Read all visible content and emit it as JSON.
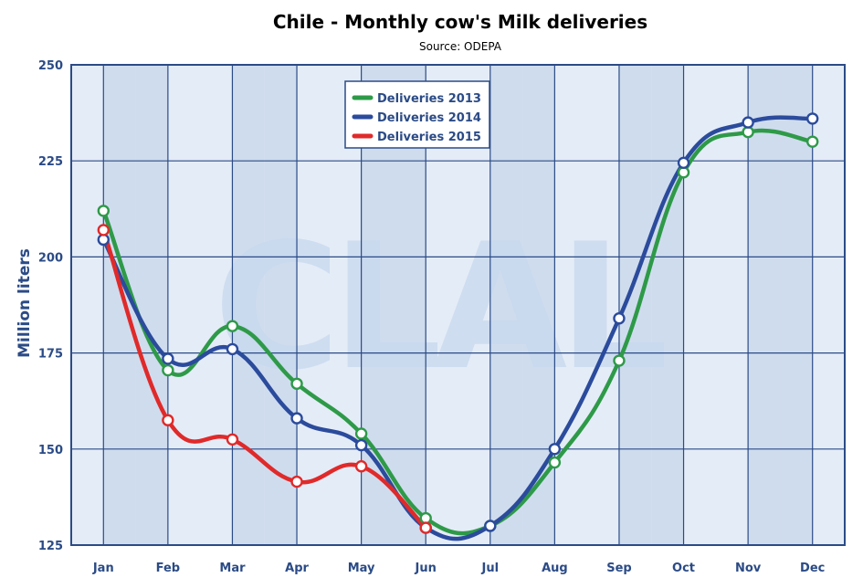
{
  "chart_data": {
    "type": "line",
    "title": "Chile - Monthly cow's Milk deliveries",
    "subtitle": "Source: ODEPA",
    "ylabel": "Million liters",
    "xlabel": "",
    "categories": [
      "Jan",
      "Feb",
      "Mar",
      "Apr",
      "May",
      "Jun",
      "Jul",
      "Aug",
      "Sep",
      "Oct",
      "Nov",
      "Dec"
    ],
    "ylim": [
      125,
      250
    ],
    "yticks": [
      125,
      150,
      175,
      200,
      225,
      250
    ],
    "grid": true,
    "legend_position": "top-center",
    "watermark": "CLAL",
    "series": [
      {
        "name": "Deliveries 2013",
        "color": "#2e9a48",
        "values": [
          212,
          170.5,
          182,
          167,
          154,
          132,
          130,
          146.5,
          173,
          222,
          232.5,
          230
        ]
      },
      {
        "name": "Deliveries 2014",
        "color": "#2b4b9c",
        "values": [
          204.5,
          173.5,
          176,
          158,
          151,
          129.5,
          130,
          150,
          184,
          224.5,
          235,
          236
        ]
      },
      {
        "name": "Deliveries 2015",
        "color": "#e02a2a",
        "values": [
          207,
          157.5,
          152.5,
          141.5,
          145.5,
          129.5,
          null,
          null,
          null,
          null,
          null,
          null
        ]
      }
    ]
  }
}
